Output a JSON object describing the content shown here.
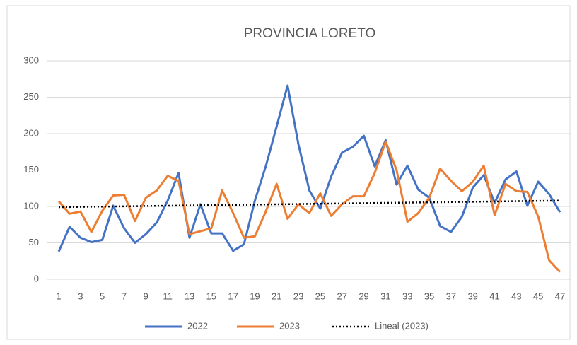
{
  "chart_data": {
    "type": "line",
    "title": "PROVINCIA LORETO",
    "categories": [
      1,
      null,
      3,
      null,
      5,
      null,
      7,
      null,
      9,
      null,
      11,
      null,
      13,
      null,
      15,
      null,
      17,
      null,
      19,
      null,
      21,
      null,
      23,
      null,
      25,
      null,
      27,
      null,
      29,
      null,
      31,
      null,
      33,
      null,
      35,
      null,
      37,
      null,
      39,
      null,
      41,
      null,
      43,
      null,
      45,
      null,
      47
    ],
    "ylim": [
      0,
      300
    ],
    "yticks": [
      0,
      50,
      100,
      150,
      200,
      250,
      300
    ],
    "grid": true,
    "legend": "bottom",
    "series": [
      {
        "name": "2022",
        "color": "#4472c4",
        "values": [
          38,
          72,
          57,
          51,
          54,
          101,
          70,
          50,
          62,
          78,
          108,
          146,
          57,
          103,
          63,
          63,
          39,
          48,
          108,
          155,
          210,
          266,
          185,
          122,
          97,
          141,
          174,
          182,
          197,
          155,
          191,
          130,
          156,
          123,
          112,
          73,
          65,
          86,
          126,
          143,
          105,
          137,
          148,
          101,
          134,
          117,
          92
        ]
      },
      {
        "name": "2023",
        "color": "#ed7d31",
        "values": [
          107,
          90,
          93,
          65,
          94,
          115,
          116,
          80,
          112,
          122,
          142,
          135,
          62,
          66,
          70,
          122,
          91,
          57,
          59,
          93,
          131,
          83,
          103,
          91,
          118,
          87,
          103,
          114,
          114,
          146,
          189,
          150,
          79,
          91,
          112,
          152,
          135,
          121,
          134,
          156,
          88,
          131,
          121,
          120,
          86,
          26,
          10
        ]
      }
    ],
    "trendline": {
      "name": "Lineal (2023)",
      "color": "#000000",
      "x": [
        1,
        47
      ],
      "values": [
        99,
        108
      ]
    }
  }
}
